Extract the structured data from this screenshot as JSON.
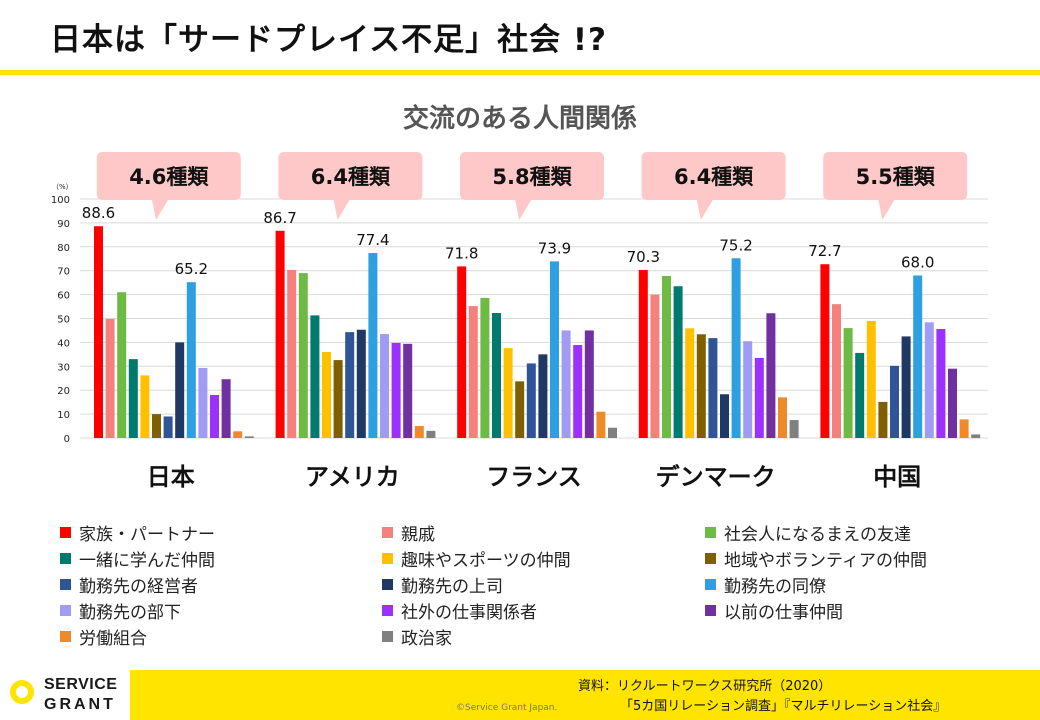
{
  "slide": {
    "title": "日本は「サードプレイス不足」社会 !?",
    "source_line1": "資料：リクルートワークス研究所（2020）",
    "source_line2": "「5カ国リレーション調査」『マルチリレーション社会』",
    "copyright": "©Service Grant Japan.",
    "logo_line1": "SERVICE",
    "logo_line2": "GRANT",
    "accent_color": "#FFE400"
  },
  "chart_data": {
    "type": "bar",
    "title": "交流のある人間関係",
    "yunit": "（%）",
    "ylim": [
      0,
      100
    ],
    "yticks": [
      0,
      10,
      20,
      30,
      40,
      50,
      60,
      70,
      80,
      90,
      100
    ],
    "grid": true,
    "legend_position": "bottom",
    "countries": [
      "日本",
      "アメリカ",
      "フランス",
      "デンマーク",
      "中国"
    ],
    "callouts": [
      "4.6種類",
      "6.4種類",
      "5.8種類",
      "6.4種類",
      "5.5種類"
    ],
    "series": [
      {
        "name": "家族・パートナー",
        "color": "#FF0000",
        "values": [
          88.6,
          86.7,
          71.8,
          70.3,
          72.7
        ],
        "labeled": true
      },
      {
        "name": "親戚",
        "color": "#F4817E",
        "values": [
          49.8,
          70.3,
          55.2,
          60.0,
          56.0
        ]
      },
      {
        "name": "社会人になるまえの友達",
        "color": "#6DBB45",
        "values": [
          61.0,
          69.0,
          58.6,
          67.8,
          46.0
        ]
      },
      {
        "name": "一緒に学んだ仲間",
        "color": "#007A6E",
        "values": [
          33.0,
          51.3,
          52.3,
          63.5,
          35.6
        ]
      },
      {
        "name": "趣味やスポーツの仲間",
        "color": "#FFC000",
        "values": [
          26.2,
          36.0,
          37.6,
          45.9,
          49.0
        ]
      },
      {
        "name": "地域やボランティアの仲間",
        "color": "#7F6000",
        "values": [
          10.0,
          32.6,
          23.7,
          43.4,
          15.1
        ]
      },
      {
        "name": "勤務先の経営者",
        "color": "#2F5597",
        "values": [
          9.0,
          44.3,
          31.2,
          41.8,
          30.2
        ]
      },
      {
        "name": "勤務先の上司",
        "color": "#1F3864",
        "values": [
          40.0,
          45.3,
          35.0,
          18.3,
          42.5
        ]
      },
      {
        "name": "勤務先の同僚",
        "color": "#2E9FE0",
        "values": [
          65.2,
          77.4,
          73.9,
          75.2,
          68.0
        ],
        "labeled": true
      },
      {
        "name": "勤務先の部下",
        "color": "#A09CF4",
        "values": [
          29.3,
          43.5,
          45.0,
          40.5,
          48.4
        ]
      },
      {
        "name": "社外の仕事関係者",
        "color": "#9B30FF",
        "values": [
          18.0,
          39.8,
          38.9,
          33.5,
          45.6
        ]
      },
      {
        "name": "以前の仕事仲間",
        "color": "#7030A0",
        "values": [
          24.6,
          39.4,
          45.0,
          52.2,
          29.0
        ]
      },
      {
        "name": "労働組合",
        "color": "#ED8B2A",
        "values": [
          2.8,
          5.0,
          11.0,
          17.0,
          7.8
        ]
      },
      {
        "name": "政治家",
        "color": "#808080",
        "values": [
          0.7,
          3.0,
          4.3,
          7.5,
          1.5
        ]
      }
    ]
  }
}
